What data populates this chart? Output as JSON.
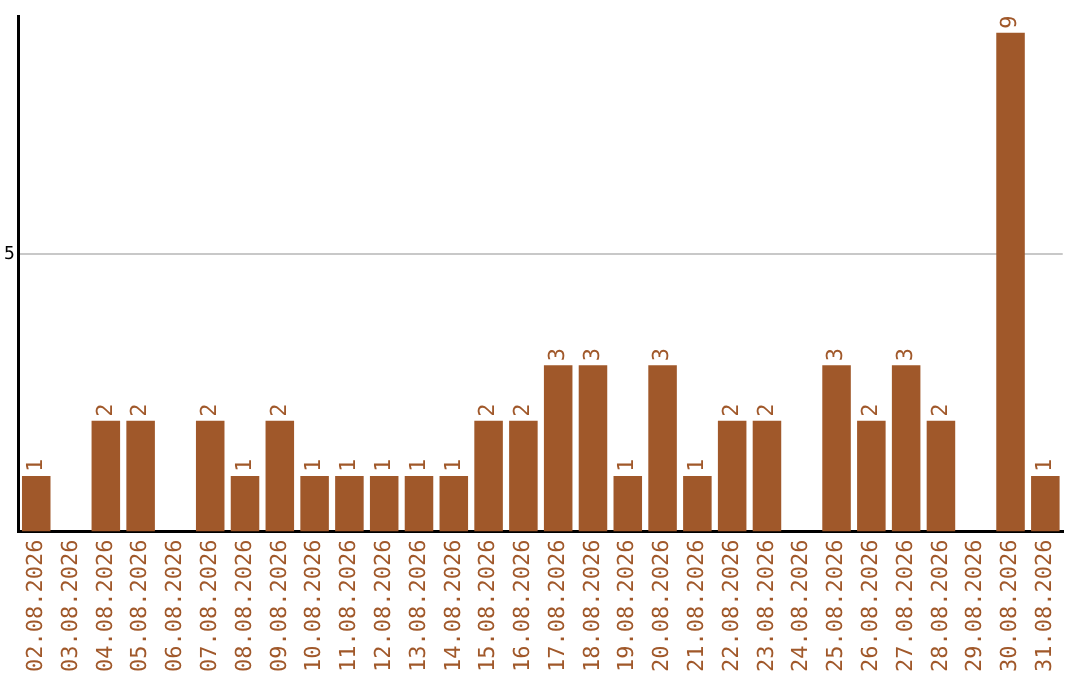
{
  "chart_data": {
    "type": "bar",
    "categories": [
      "02.08.2026",
      "03.08.2026",
      "04.08.2026",
      "05.08.2026",
      "06.08.2026",
      "07.08.2026",
      "08.08.2026",
      "09.08.2026",
      "10.08.2026",
      "11.08.2026",
      "12.08.2026",
      "13.08.2026",
      "14.08.2026",
      "15.08.2026",
      "16.08.2026",
      "17.08.2026",
      "18.08.2026",
      "19.08.2026",
      "20.08.2026",
      "21.08.2026",
      "22.08.2026",
      "23.08.2026",
      "24.08.2026",
      "25.08.2026",
      "26.08.2026",
      "27.08.2026",
      "28.08.2026",
      "29.08.2026",
      "30.08.2026",
      "31.08.2026"
    ],
    "values": [
      1,
      0,
      2,
      2,
      0,
      2,
      1,
      2,
      1,
      1,
      1,
      1,
      1,
      2,
      2,
      3,
      3,
      1,
      3,
      1,
      2,
      2,
      0,
      3,
      2,
      3,
      2,
      0,
      9,
      1
    ],
    "value_labels": [
      "1",
      null,
      "2",
      "2",
      null,
      "2",
      "1",
      "2",
      "1",
      "1",
      "1",
      "1",
      "1",
      "2",
      "2",
      "3",
      "3",
      "1",
      "3",
      "1",
      "2",
      "2",
      null,
      "3",
      "2",
      "3",
      "2",
      null,
      "9",
      "1"
    ],
    "color": "#a0582a",
    "ylim": [
      0,
      9.3
    ],
    "yticks": [
      5
    ],
    "grid": "y",
    "legend": false
  }
}
